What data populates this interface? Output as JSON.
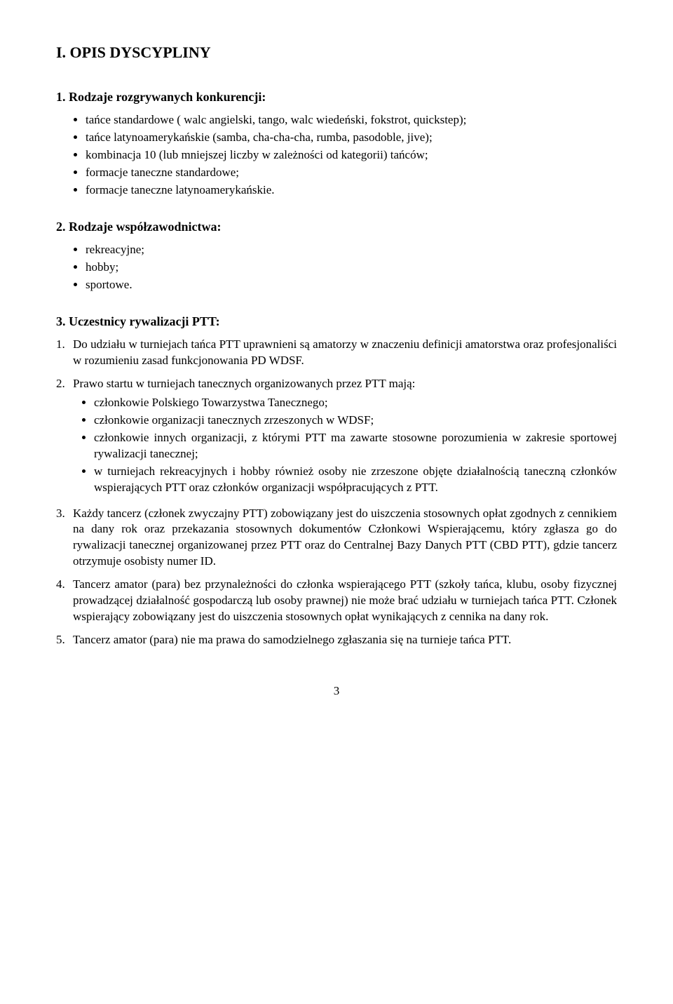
{
  "section_title": "I. OPIS DYSCYPLINY",
  "h1": {
    "heading": "1. Rodzaje rozgrywanych konkurencji:",
    "items": [
      "tańce standardowe ( walc angielski, tango, walc wiedeński, fokstrot, quickstep);",
      "tańce latynoamerykańskie (samba, cha-cha-cha, rumba, pasodoble, jive);",
      "kombinacja 10 (lub mniejszej liczby w zależności od kategorii) tańców;",
      "formacje taneczne standardowe;",
      "formacje taneczne latynoamerykańskie."
    ]
  },
  "h2": {
    "heading": "2. Rodzaje współzawodnictwa:",
    "items": [
      "rekreacyjne;",
      "hobby;",
      "sportowe."
    ]
  },
  "h3": {
    "heading": "3. Uczestnicy rywalizacji PTT:",
    "points": [
      {
        "num": "1.",
        "text": "Do udziału w turniejach tańca PTT uprawnieni są amatorzy w znaczeniu definicji amatorstwa oraz profesjonaliści w rozumieniu zasad funkcjonowania PD WDSF."
      },
      {
        "num": "2.",
        "text": "Prawo startu w turniejach tanecznych organizowanych przez PTT mają:",
        "sub": [
          "członkowie Polskiego Towarzystwa Tanecznego;",
          "członkowie organizacji tanecznych zrzeszonych w WDSF;",
          "członkowie innych organizacji, z którymi PTT ma zawarte stosowne porozumienia w zakresie sportowej rywalizacji tanecznej;",
          "w turniejach rekreacyjnych i hobby również osoby nie zrzeszone objęte działalnością taneczną członków wspierających PTT oraz członków organizacji współpracujących z PTT."
        ]
      },
      {
        "num": "3.",
        "text": "Każdy tancerz (członek zwyczajny PTT) zobowiązany jest do uiszczenia stosownych opłat zgodnych z cennikiem na dany rok oraz przekazania stosownych dokumentów Członkowi Wspierającemu, który zgłasza go do rywalizacji tanecznej organizowanej przez PTT oraz do Centralnej Bazy Danych PTT (CBD PTT), gdzie tancerz otrzymuje osobisty numer ID."
      },
      {
        "num": "4.",
        "text": "Tancerz amator (para) bez przynależności do członka wspierającego PTT (szkoły tańca, klubu, osoby fizycznej prowadzącej działalność gospodarczą lub osoby prawnej) nie może brać udziału w turniejach tańca PTT. Członek wspierający zobowiązany jest do uiszczenia stosownych opłat wynikających z cennika na dany rok."
      },
      {
        "num": "5.",
        "text": "Tancerz amator (para) nie ma prawa do samodzielnego zgłaszania się na turnieje tańca PTT."
      }
    ]
  },
  "page_number": "3"
}
